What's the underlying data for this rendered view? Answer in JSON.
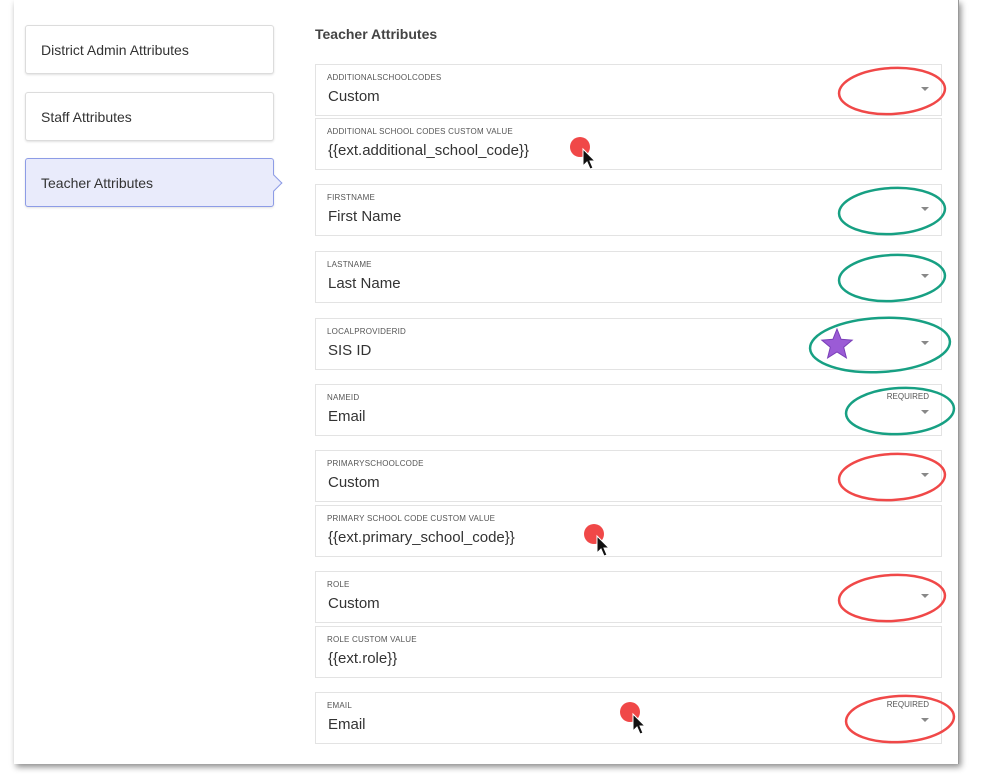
{
  "sidebar": {
    "items": [
      {
        "label": "District Admin Attributes",
        "active": false
      },
      {
        "label": "Staff Attributes",
        "active": false
      },
      {
        "label": "Teacher Attributes",
        "active": true
      }
    ]
  },
  "section_title": "Teacher Attributes",
  "fields": [
    {
      "label": "ADDITIONALSCHOOLCODES",
      "value": "Custom",
      "type": "select",
      "required": "",
      "annotation": "red-oval"
    },
    {
      "label": "ADDITIONAL SCHOOL CODES CUSTOM VALUE",
      "value": "{{ext.additional_school_code}}",
      "type": "text",
      "required": "",
      "annotation": "red-dot-cursor"
    },
    {
      "label": "FIRSTNAME",
      "value": "First Name",
      "type": "select",
      "required": "",
      "annotation": "green-oval"
    },
    {
      "label": "LASTNAME",
      "value": "Last Name",
      "type": "select",
      "required": "",
      "annotation": "green-oval"
    },
    {
      "label": "LOCALPROVIDERID",
      "value": "SIS ID",
      "type": "select",
      "required": "",
      "annotation": "green-oval-star"
    },
    {
      "label": "NAMEID",
      "value": "Email",
      "type": "select",
      "required": "REQUIRED",
      "annotation": "green-oval"
    },
    {
      "label": "PRIMARYSCHOOLCODE",
      "value": "Custom",
      "type": "select",
      "required": "",
      "annotation": "red-oval"
    },
    {
      "label": "PRIMARY SCHOOL CODE CUSTOM VALUE",
      "value": "{{ext.primary_school_code}}",
      "type": "text",
      "required": "",
      "annotation": "red-dot-cursor"
    },
    {
      "label": "ROLE",
      "value": "Custom",
      "type": "select",
      "required": "",
      "annotation": "red-oval"
    },
    {
      "label": "ROLE CUSTOM VALUE",
      "value": "{{ext.role}}",
      "type": "text",
      "required": "",
      "annotation": ""
    },
    {
      "label": "EMAIL",
      "value": "Email",
      "type": "select",
      "required": "REQUIRED",
      "annotation": "red-oval"
    }
  ],
  "colors": {
    "red_annotation": "#f04848",
    "green_annotation": "#17a083",
    "star": "#9b5bd6",
    "active_bg": "#e9ebfb",
    "active_border": "#8d9ce6"
  }
}
